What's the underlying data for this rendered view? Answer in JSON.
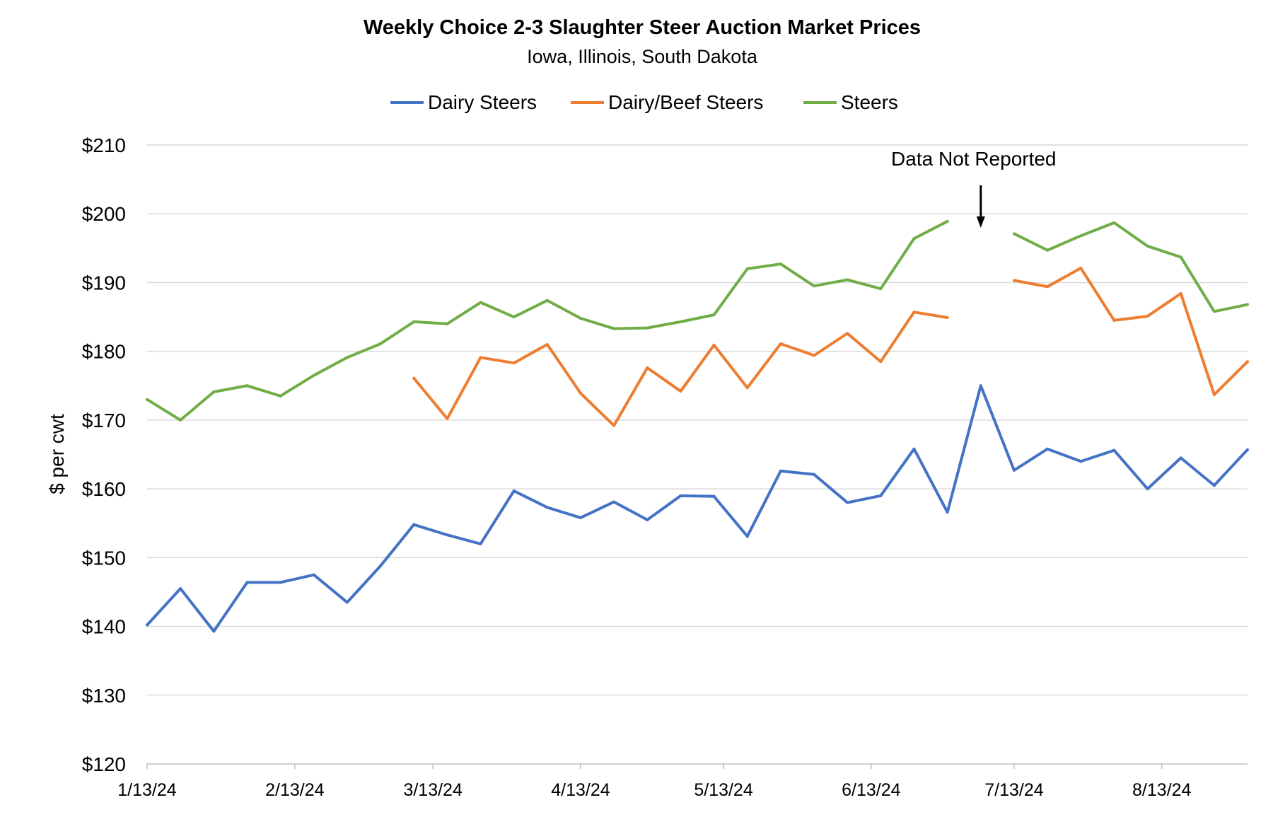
{
  "chart_data": {
    "type": "line",
    "title": "Weekly Choice 2-3 Slaughter Steer Auction Market Prices",
    "subtitle": "Iowa, Illinois, South Dakota",
    "xlabel": "",
    "ylabel": "$ per cwt",
    "ylim": [
      120,
      210
    ],
    "yticks": [
      "$120",
      "$130",
      "$140",
      "$150",
      "$160",
      "$170",
      "$180",
      "$190",
      "$200",
      "$210"
    ],
    "ytick_values": [
      120,
      130,
      140,
      150,
      160,
      170,
      180,
      190,
      200,
      210
    ],
    "xticks": [
      "1/13/24",
      "2/13/24",
      "3/13/24",
      "4/13/24",
      "5/13/24",
      "6/13/24",
      "7/13/24",
      "8/13/24"
    ],
    "xtick_dates": [
      "2024-01-13",
      "2024-02-13",
      "2024-03-13",
      "2024-04-13",
      "2024-05-13",
      "2024-06-13",
      "2024-07-13",
      "2024-08-13"
    ],
    "xlim": [
      "2024-01-13",
      "2024-08-31"
    ],
    "grid": "horizontal",
    "legend": "top",
    "x": [
      "2024-01-13",
      "2024-01-20",
      "2024-01-27",
      "2024-02-03",
      "2024-02-10",
      "2024-02-17",
      "2024-02-24",
      "2024-03-02",
      "2024-03-09",
      "2024-03-16",
      "2024-03-23",
      "2024-03-30",
      "2024-04-06",
      "2024-04-13",
      "2024-04-20",
      "2024-04-27",
      "2024-05-04",
      "2024-05-11",
      "2024-05-18",
      "2024-05-25",
      "2024-06-01",
      "2024-06-08",
      "2024-06-15",
      "2024-06-22",
      "2024-06-29",
      "2024-07-06",
      "2024-07-13",
      "2024-07-20",
      "2024-07-27",
      "2024-08-03",
      "2024-08-10",
      "2024-08-17",
      "2024-08-24",
      "2024-08-31"
    ],
    "series": [
      {
        "name": "Dairy Steers",
        "color": "#4472C4",
        "values": [
          140.2,
          145.5,
          139.3,
          146.4,
          146.4,
          147.5,
          143.5,
          148.8,
          154.8,
          153.3,
          152.0,
          159.7,
          157.3,
          155.8,
          158.1,
          155.5,
          159.0,
          158.9,
          153.1,
          162.6,
          162.1,
          158.0,
          159.0,
          165.8,
          156.6,
          175.0,
          162.7,
          165.8,
          164.0,
          165.6,
          160.0,
          164.5,
          160.5,
          165.7
        ]
      },
      {
        "name": "Dairy/Beef Steers",
        "color": "#ED7D31",
        "values": [
          null,
          null,
          null,
          null,
          null,
          null,
          null,
          null,
          176.1,
          170.2,
          179.1,
          178.3,
          181.0,
          173.9,
          169.2,
          177.6,
          174.2,
          180.9,
          174.7,
          181.1,
          179.4,
          182.6,
          178.5,
          185.7,
          184.9,
          null,
          190.3,
          189.4,
          192.1,
          184.5,
          185.1,
          188.4,
          173.7,
          178.5
        ]
      },
      {
        "name": "Steers",
        "color": "#70AD47",
        "values": [
          173.0,
          170.0,
          174.1,
          175.0,
          173.5,
          176.5,
          179.1,
          181.1,
          184.3,
          184.0,
          187.1,
          185.0,
          187.4,
          184.8,
          183.3,
          183.4,
          184.3,
          185.3,
          192.0,
          192.7,
          189.5,
          190.4,
          189.1,
          196.4,
          198.9,
          null,
          197.1,
          194.7,
          196.8,
          198.7,
          195.3,
          193.7,
          185.8,
          186.8
        ]
      }
    ],
    "annotations": [
      {
        "text": "Data Not Reported",
        "date": "2024-07-06",
        "arrow": "down"
      }
    ]
  }
}
